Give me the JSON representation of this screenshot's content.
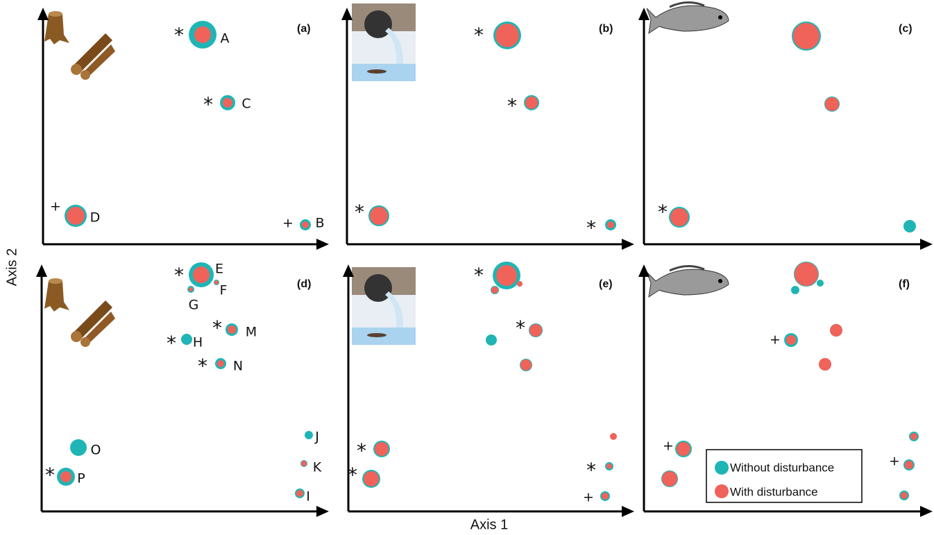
{
  "axis_labels": {
    "x": "Axis 1",
    "y": "Axis 2"
  },
  "panels": [
    {
      "label": "(a)",
      "annotations": [
        "*",
        "A",
        "*",
        "C",
        "+",
        "D",
        "+",
        "B"
      ]
    },
    {
      "label": "(b)",
      "annotations": [
        "*",
        "*",
        "*",
        "*"
      ]
    },
    {
      "label": "(c)",
      "annotations": [
        "*"
      ]
    },
    {
      "label": "(d)",
      "annotations": [
        "*",
        "E",
        "F",
        "G",
        "*",
        "H",
        "*",
        "M",
        "*",
        "N",
        "O",
        "*",
        "P",
        "J",
        "K",
        "I"
      ]
    },
    {
      "label": "(e)",
      "annotations": [
        "*",
        "*",
        "*",
        "*",
        "*",
        "+"
      ]
    },
    {
      "label": "(f)",
      "annotations": [
        "+",
        "+",
        "+"
      ]
    }
  ],
  "legend": [
    {
      "label": "Without disturbance"
    },
    {
      "label": "With disturbance"
    }
  ]
}
